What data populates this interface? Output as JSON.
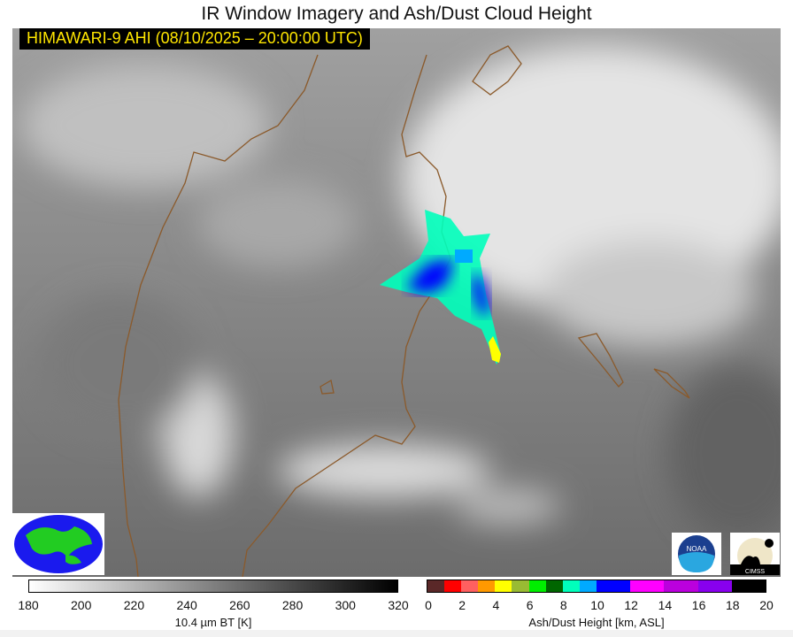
{
  "title": "IR Window Imagery and Ash/Dust Cloud Height",
  "stamp": "HIMAWARI-9 AHI (08/10/2025 – 20:00:00 UTC)",
  "bt_colorbar": {
    "label": "10.4 µm BT [K]",
    "ticks": [
      "180",
      "200",
      "220",
      "240",
      "260",
      "280",
      "300",
      "320"
    ],
    "range": [
      180,
      320
    ],
    "colormap": "white-to-black grayscale"
  },
  "ash_colorbar": {
    "label": "Ash/Dust Height [km, ASL]",
    "ticks": [
      "0",
      "2",
      "4",
      "6",
      "8",
      "10",
      "12",
      "14",
      "16",
      "18",
      "20"
    ],
    "segments": [
      {
        "from": 0,
        "to": 1,
        "color": "#5a2828"
      },
      {
        "from": 1,
        "to": 2,
        "color": "#ff0000"
      },
      {
        "from": 2,
        "to": 3,
        "color": "#ff6060"
      },
      {
        "from": 3,
        "to": 4,
        "color": "#ff9900"
      },
      {
        "from": 4,
        "to": 5,
        "color": "#ffff00"
      },
      {
        "from": 5,
        "to": 6,
        "color": "#99bb33"
      },
      {
        "from": 6,
        "to": 7,
        "color": "#00ee00"
      },
      {
        "from": 7,
        "to": 8,
        "color": "#006600"
      },
      {
        "from": 8,
        "to": 9,
        "color": "#00ffbb"
      },
      {
        "from": 9,
        "to": 10,
        "color": "#00aaff"
      },
      {
        "from": 10,
        "to": 12,
        "color": "#0000ff"
      },
      {
        "from": 12,
        "to": 14,
        "color": "#ff00ff"
      },
      {
        "from": 14,
        "to": 16,
        "color": "#bb00dd"
      },
      {
        "from": 16,
        "to": 18,
        "color": "#8800ee"
      },
      {
        "from": 18,
        "to": 20,
        "color": "#000000"
      }
    ]
  },
  "logos": {
    "noaa": "NOAA",
    "cimss": "CIMSS"
  },
  "colors": {
    "coastline": "#8b5a2b",
    "stamp_text": "#ffe600"
  }
}
